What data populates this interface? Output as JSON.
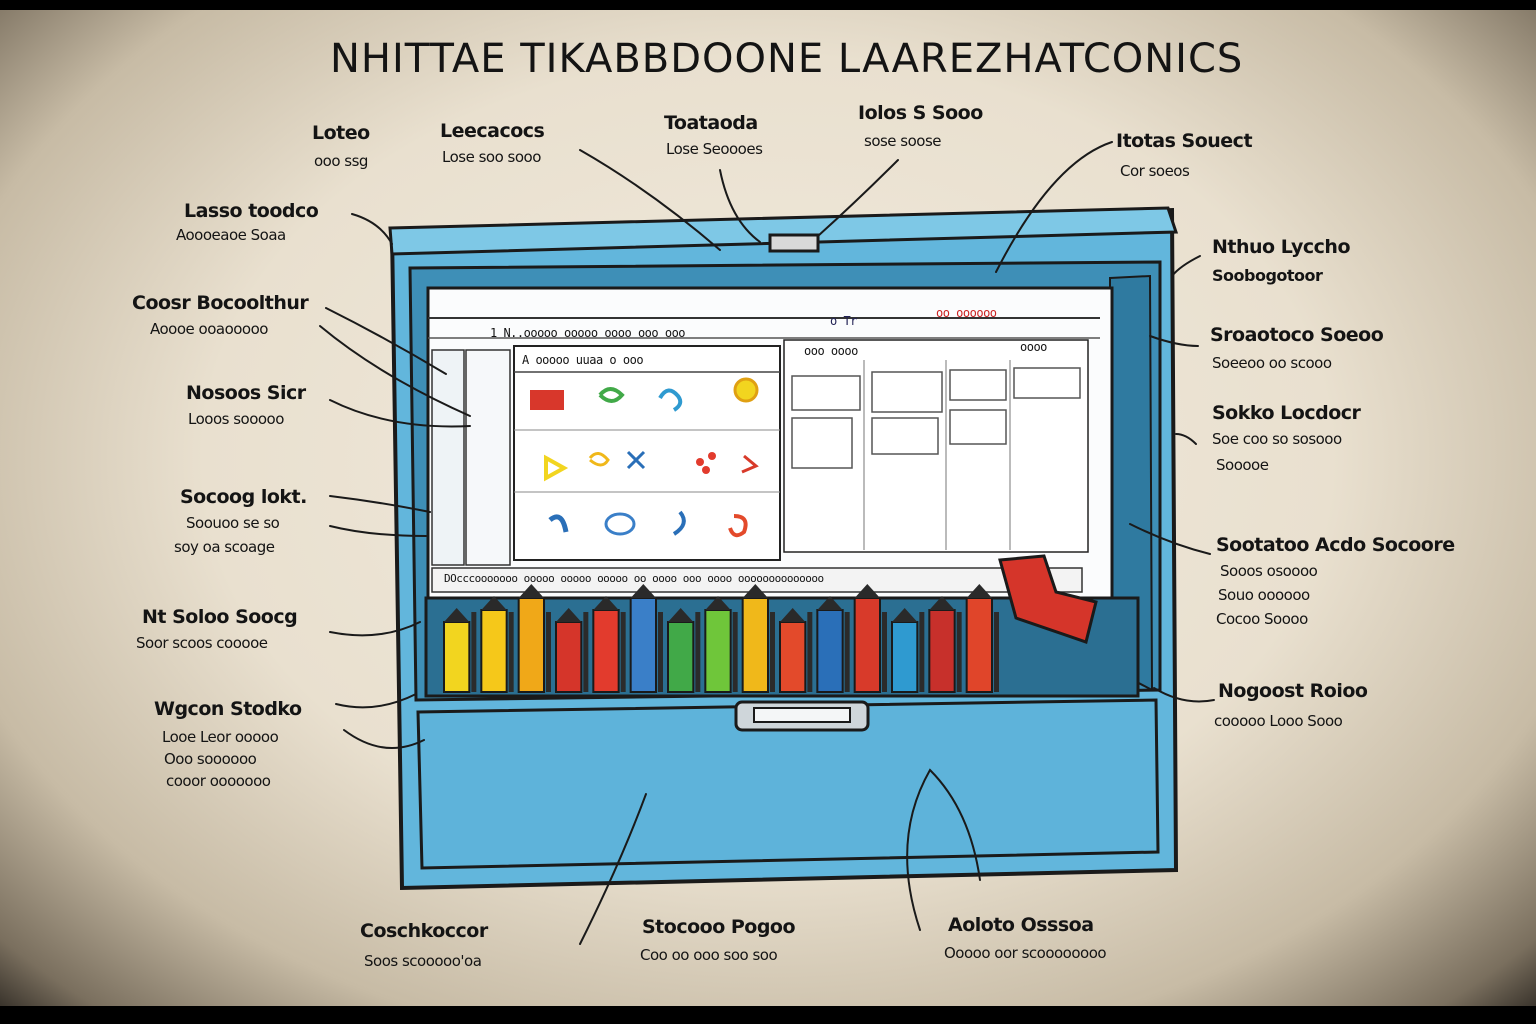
{
  "title": "NHITTAE TIKABBDOONE LAAREZHATCONICS",
  "colors": {
    "cabinet": "#62b6dc",
    "cabinet_dark": "#3e8fb7",
    "outline": "#1a1a1a",
    "screen": "#fbfcfd",
    "ink": "#141414"
  },
  "labels": {
    "top_1": {
      "head": "Loteo",
      "sub": "ooo ssg"
    },
    "top_2": {
      "head": "Leecacocs",
      "sub": "Lose soo sooo"
    },
    "top_3": {
      "head": "Toataoda",
      "sub": "Lose Seoooes"
    },
    "top_4": {
      "head": "Iolos S Sooo",
      "sub": "sose soose"
    },
    "top_5": {
      "head": "Itotas Souect",
      "sub": "Cor soeos"
    },
    "left_1": {
      "head": "Lasso toodco",
      "sub": "Aoooeaoe Soaa"
    },
    "left_2": {
      "head": "Coosr Bocoolthur",
      "sub": "Aoooe ooaooooo"
    },
    "left_3": {
      "head": "Nosoos Sicr",
      "sub": "Looos sooooo"
    },
    "left_4": {
      "head": "Socoog lokt.",
      "sub": "Soouoo se so",
      "sub2": "soy oa scoage"
    },
    "left_5": {
      "head": "Nt Soloo Soocg",
      "sub": "Soor scoos cooooe"
    },
    "left_6": {
      "head": "Wgcon Stodko",
      "sub": "Looe Leor ooooo",
      "sub2": "Ooo soooooo",
      "sub3": "cooor ooooooo"
    },
    "right_1": {
      "head": "Nthuo Lyccho",
      "sub": "Soobogotoor"
    },
    "right_2": {
      "head": "Sroaotoco Soeoo",
      "sub": "Soeeoo oo scooo"
    },
    "right_3": {
      "head": "Sokko Locdocr",
      "sub": "Soe coo so sosooo",
      "sub2": "Sooooe"
    },
    "right_4": {
      "head": "Sootatoo Acdo Socoore",
      "sub": "Sooos osoooo",
      "sub2": "Souo oooooo",
      "sub3": "Cocoo Soooo"
    },
    "right_5": {
      "head": "Nogoost Roioo",
      "sub": "cooooo Looo Sooo"
    },
    "bottom_1": {
      "head": "Coschkoccor",
      "sub": "Soos scooooo'oa"
    },
    "bottom_2": {
      "head": "Stocooo Pogoo",
      "sub": "Coo oo ooo soo soo"
    },
    "bottom_3": {
      "head": "Aoloto Osssoa",
      "sub": "Ooooo oor scoooooooo"
    }
  },
  "screen": {
    "menu": "1   N..ooooo ooooo oooo ooo ooo",
    "menu_right": "oo  oooooo",
    "top_right": "o  Tr",
    "panel_title": "A   ooooo  uuaa  o  ooo",
    "right_tabs": "ooo oooo",
    "right_tabs_2": "oooo",
    "status": "DOcccooooooo   ooooo  ooooo  ooooo oo oooo ooo oooo oooooooooooooo"
  },
  "tools": {
    "colors": [
      "#f2d51f",
      "#f5c81a",
      "#f0a818",
      "#d5352a",
      "#e23b2d",
      "#3a7fc8",
      "#41a948",
      "#6fc63a",
      "#f0b81a",
      "#e34a2b",
      "#2a6fb8",
      "#d83a2a",
      "#2f9ad0",
      "#c7302b",
      "#e0452a"
    ]
  }
}
